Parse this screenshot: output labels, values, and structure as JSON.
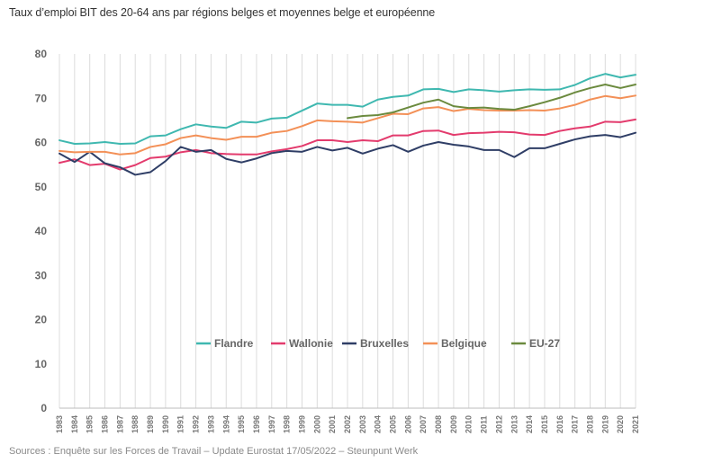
{
  "title": "Taux d’emploi BIT des 20-64 ans par régions belges et moyennes belge et européenne",
  "source": "Sources : Enquête sur les Forces de Travail – Update Eurostat 17/05/2022 – Steunpunt Werk",
  "chart_data": {
    "type": "line",
    "title": "Taux d’emploi BIT des 20-64 ans par régions belges et moyennes belge et européenne",
    "xlabel": "",
    "ylabel": "",
    "ylim": [
      0,
      80
    ],
    "yticks": [
      "0",
      "10",
      "20",
      "30",
      "40",
      "50",
      "60",
      "70",
      "80"
    ],
    "grid": "vertical",
    "legend_position": "bottom-center-inside",
    "x": [
      "1983",
      "1984",
      "1985",
      "1986",
      "1987",
      "1988",
      "1989",
      "1990",
      "1991",
      "1992",
      "1993",
      "1994",
      "1995",
      "1996",
      "1997",
      "1998",
      "1999",
      "2000",
      "2001",
      "2002",
      "2003",
      "2004",
      "2005",
      "2006",
      "2007",
      "2008",
      "2009",
      "2010",
      "2011",
      "2012",
      "2013",
      "2014",
      "2015",
      "2016",
      "2017",
      "2018",
      "2019",
      "2020",
      "2021"
    ],
    "series": [
      {
        "name": "Flandre",
        "color": "#3fb8b0",
        "values": [
          60.5,
          59.7,
          59.8,
          60.1,
          59.7,
          59.8,
          61.4,
          61.6,
          63.0,
          64.1,
          63.6,
          63.3,
          64.7,
          64.5,
          65.4,
          65.6,
          67.2,
          68.8,
          68.5,
          68.5,
          68.1,
          69.7,
          70.3,
          70.6,
          72.0,
          72.1,
          71.4,
          72.0,
          71.8,
          71.5,
          71.8,
          72.0,
          71.9,
          72.0,
          73.0,
          74.5,
          75.5,
          74.7,
          75.3
        ]
      },
      {
        "name": "Wallonie",
        "color": "#e33b6d",
        "values": [
          55.4,
          56.2,
          54.9,
          55.2,
          53.9,
          54.9,
          56.5,
          56.8,
          57.8,
          58.3,
          57.6,
          57.4,
          57.3,
          57.3,
          58.0,
          58.5,
          59.2,
          60.5,
          60.5,
          60.1,
          60.5,
          60.3,
          61.6,
          61.6,
          62.6,
          62.7,
          61.7,
          62.1,
          62.2,
          62.4,
          62.3,
          61.8,
          61.7,
          62.6,
          63.2,
          63.6,
          64.7,
          64.6,
          65.2
        ]
      },
      {
        "name": "Bruxelles",
        "color": "#2f3e66",
        "values": [
          57.5,
          55.6,
          57.9,
          55.3,
          54.4,
          52.7,
          53.3,
          55.8,
          59.0,
          57.9,
          58.3,
          56.3,
          55.5,
          56.4,
          57.6,
          58.1,
          57.9,
          59.0,
          58.2,
          58.8,
          57.5,
          58.6,
          59.4,
          57.9,
          59.3,
          60.1,
          59.5,
          59.1,
          58.3,
          58.3,
          56.7,
          58.7,
          58.7,
          59.7,
          60.7,
          61.4,
          61.7,
          61.2,
          62.2
        ]
      },
      {
        "name": "Belgique",
        "color": "#f39057",
        "values": [
          58.1,
          57.8,
          57.9,
          57.9,
          57.3,
          57.6,
          59.0,
          59.6,
          61.0,
          61.6,
          61.0,
          60.6,
          61.3,
          61.3,
          62.2,
          62.6,
          63.7,
          65.0,
          64.8,
          64.7,
          64.5,
          65.5,
          66.5,
          66.4,
          67.7,
          68.0,
          67.1,
          67.6,
          67.3,
          67.2,
          67.2,
          67.3,
          67.2,
          67.7,
          68.5,
          69.7,
          70.5,
          70.0,
          70.6
        ]
      },
      {
        "name": "EU-27",
        "color": "#6b8a3e",
        "values": [
          null,
          null,
          null,
          null,
          null,
          null,
          null,
          null,
          null,
          null,
          null,
          null,
          null,
          null,
          null,
          null,
          null,
          null,
          null,
          65.5,
          66.0,
          66.2,
          66.8,
          67.9,
          69.0,
          69.7,
          68.2,
          67.8,
          67.9,
          67.6,
          67.4,
          68.2,
          69.1,
          70.1,
          71.3,
          72.3,
          73.1,
          72.3,
          73.1
        ]
      }
    ]
  }
}
